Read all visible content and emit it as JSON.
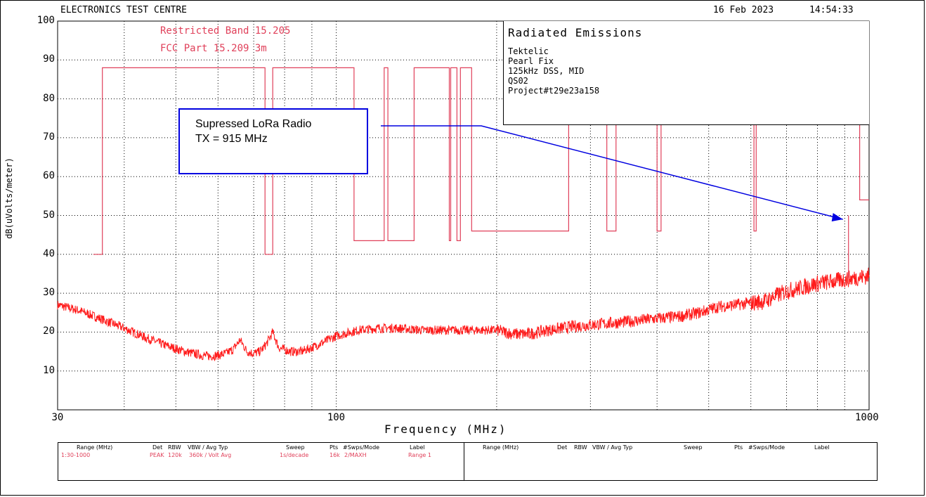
{
  "header": {
    "lab": "ELECTRONICS TEST CENTRE",
    "date": "16 Feb 2023",
    "time": "14:54:33"
  },
  "limits": {
    "restricted_band_label": "Restricted Band 15.205",
    "fcc_label": "FCC Part 15.209 3m"
  },
  "infobox": {
    "title": "Radiated Emissions",
    "lines": [
      "Tektelic",
      "Pearl Fix",
      "125kHz DSS, MID",
      "QS02",
      "Project#t29e23a158"
    ]
  },
  "callout": {
    "line1": "Supressed LoRa Radio",
    "line2": "TX = 915 MHz"
  },
  "legend": {
    "headers": [
      "Range (MHz)",
      "Det",
      "RBW",
      "VBW / Avg Typ",
      "Sweep",
      "Pts",
      "#Swps/Mode",
      "Label"
    ],
    "row1": [
      "1:30-1000",
      "PEAK",
      "120k",
      "360k / Volt Avg",
      "1s/decade",
      "16k",
      "2/MAXH",
      "Range 1"
    ]
  },
  "colors": {
    "trace": "#ff1a1a",
    "limit": "#e0405a",
    "callout": "#0000e0",
    "grid": "#000000"
  },
  "chart_data": {
    "type": "line",
    "xlabel": "Frequency (MHz)",
    "ylabel": "dB(uVolts/meter)",
    "xscale": "log",
    "xlim": [
      30,
      1000
    ],
    "ylim": [
      0,
      100
    ],
    "x_tick_labels": [
      "30",
      "100",
      "1000"
    ],
    "y_ticks": [
      10,
      20,
      30,
      40,
      50,
      60,
      70,
      80,
      90,
      100
    ],
    "grid": true,
    "series": [
      {
        "kind": "trace",
        "x": [
          30,
          33,
          36,
          40,
          44,
          48,
          52,
          56,
          58,
          60,
          62,
          64,
          66,
          68,
          70,
          72,
          74,
          76,
          78,
          82,
          86,
          90,
          95,
          100,
          110,
          120,
          130,
          145,
          160,
          175,
          190,
          200,
          215,
          230,
          250,
          280,
          310,
          340,
          370,
          400,
          440,
          480,
          520,
          560,
          600,
          640,
          660,
          700,
          750,
          800,
          850,
          900,
          950,
          1000
        ],
        "values": [
          27,
          25.5,
          23.5,
          21,
          18.5,
          16.5,
          15,
          14,
          13.8,
          14,
          14.5,
          15.5,
          18,
          15,
          14.5,
          15,
          17,
          20,
          16,
          15,
          15,
          16,
          17.5,
          19,
          20.5,
          21,
          21,
          20.5,
          20.5,
          20.5,
          20.5,
          20.5,
          19.5,
          19.5,
          20.5,
          21.5,
          22,
          22.5,
          23,
          23.5,
          24,
          25,
          26.5,
          27,
          27.5,
          28,
          29,
          30.5,
          31.5,
          32.5,
          33,
          33.5,
          34,
          34.5
        ]
      },
      {
        "kind": "limit",
        "x": [
          35,
          36.4,
          36.4,
          73.5,
          73.5,
          76,
          76,
          108,
          108,
          123,
          123,
          125,
          125,
          140,
          140,
          163,
          163,
          164,
          164,
          168.5,
          168.5,
          171,
          171,
          179.5,
          179.5,
          273,
          273,
          322,
          322,
          335,
          335,
          400,
          400,
          407,
          407,
          608,
          608,
          614,
          614,
          960,
          960,
          1000
        ],
        "values": [
          40,
          40,
          88,
          88,
          40,
          40,
          88,
          88,
          43.5,
          43.5,
          88,
          88,
          43.5,
          43.5,
          88,
          88,
          43.5,
          43.5,
          88,
          88,
          43.5,
          43.5,
          88,
          88,
          46,
          46,
          88,
          88,
          46,
          46,
          88,
          88,
          46,
          46,
          88,
          88,
          46,
          46,
          88,
          88,
          54,
          54
        ]
      }
    ],
    "markers": [
      {
        "x": 915,
        "y": 50
      }
    ]
  }
}
